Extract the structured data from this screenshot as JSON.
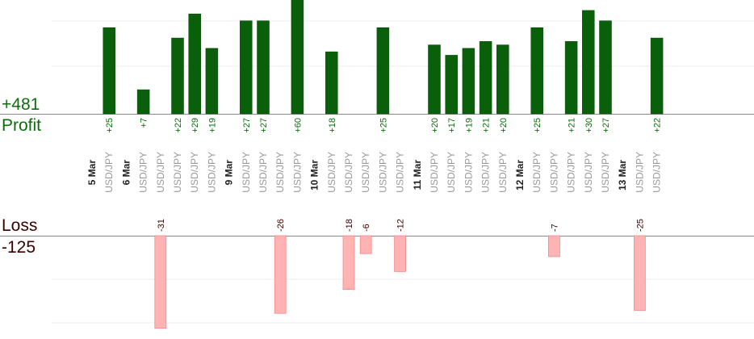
{
  "summary": {
    "profit_total": "+481",
    "profit_label": "Profit",
    "loss_label": "Loss",
    "loss_total": "-125"
  },
  "colors": {
    "profit_bar": "#0a5f0a",
    "loss_bar": "#ffb3b3",
    "profit_text": "#0b6e0b",
    "loss_text": "#3a0000",
    "date_text": "#222222",
    "pair_text": "#999999"
  },
  "chart_data": {
    "type": "bar",
    "title": "",
    "xlabel": "",
    "ylabel": "",
    "grid": true,
    "columns": [
      {
        "label": "5 Mar",
        "kind": "date"
      },
      {
        "label": "USD/JPY",
        "kind": "trade",
        "value": 25
      },
      {
        "label": "6 Mar",
        "kind": "date"
      },
      {
        "label": "USD/JPY",
        "kind": "trade",
        "value": 7
      },
      {
        "label": "USD/JPY",
        "kind": "trade",
        "value": -31
      },
      {
        "label": "USD/JPY",
        "kind": "trade",
        "value": 22
      },
      {
        "label": "USD/JPY",
        "kind": "trade",
        "value": 29
      },
      {
        "label": "USD/JPY",
        "kind": "trade",
        "value": 19
      },
      {
        "label": "9 Mar",
        "kind": "date"
      },
      {
        "label": "USD/JPY",
        "kind": "trade",
        "value": 27
      },
      {
        "label": "USD/JPY",
        "kind": "trade",
        "value": 27
      },
      {
        "label": "USD/JPY",
        "kind": "trade",
        "value": -26
      },
      {
        "label": "USD/JPY",
        "kind": "trade",
        "value": 60
      },
      {
        "label": "10 Mar",
        "kind": "date"
      },
      {
        "label": "USD/JPY",
        "kind": "trade",
        "value": 18
      },
      {
        "label": "USD/JPY",
        "kind": "trade",
        "value": -18
      },
      {
        "label": "USD/JPY",
        "kind": "trade",
        "value": -6
      },
      {
        "label": "USD/JPY",
        "kind": "trade",
        "value": 25
      },
      {
        "label": "USD/JPY",
        "kind": "trade",
        "value": -12
      },
      {
        "label": "11 Mar",
        "kind": "date"
      },
      {
        "label": "USD/JPY",
        "kind": "trade",
        "value": 20
      },
      {
        "label": "USD/JPY",
        "kind": "trade",
        "value": 17
      },
      {
        "label": "USD/JPY",
        "kind": "trade",
        "value": 19
      },
      {
        "label": "USD/JPY",
        "kind": "trade",
        "value": 21
      },
      {
        "label": "USD/JPY",
        "kind": "trade",
        "value": 20
      },
      {
        "label": "12 Mar",
        "kind": "date"
      },
      {
        "label": "USD/JPY",
        "kind": "trade",
        "value": 25
      },
      {
        "label": "USD/JPY",
        "kind": "trade",
        "value": -7
      },
      {
        "label": "USD/JPY",
        "kind": "trade",
        "value": 21
      },
      {
        "label": "USD/JPY",
        "kind": "trade",
        "value": 30
      },
      {
        "label": "USD/JPY",
        "kind": "trade",
        "value": 27
      },
      {
        "label": "13 Mar",
        "kind": "date"
      },
      {
        "label": "USD/JPY",
        "kind": "trade",
        "value": -25
      },
      {
        "label": "USD/JPY",
        "kind": "trade",
        "value": 22
      }
    ]
  }
}
